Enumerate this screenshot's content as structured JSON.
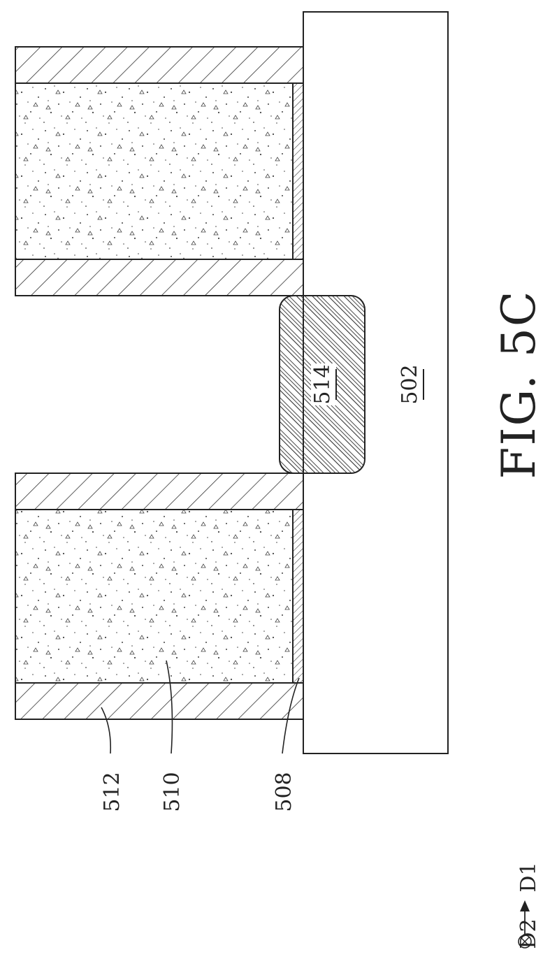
{
  "figure": {
    "title": "FIG. 5C",
    "colors": {
      "line": "#222222",
      "background": "#ffffff",
      "hatch": "#333333",
      "speckle": "#444444"
    },
    "labels": {
      "substrate": "502",
      "liner": "508",
      "fill": "510",
      "spacer": "512",
      "feature": "514"
    },
    "axes": {
      "into_page": "D2",
      "right": "D1"
    }
  }
}
